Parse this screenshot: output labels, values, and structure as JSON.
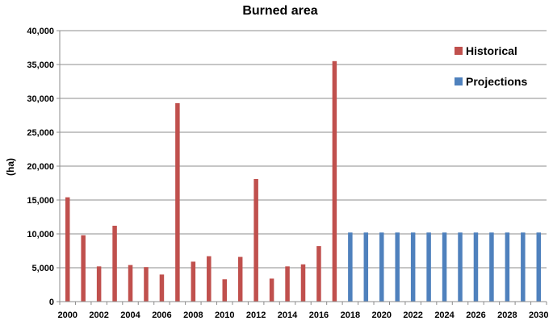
{
  "chart_data": {
    "type": "bar",
    "title": "Burned area",
    "xlabel": "",
    "ylabel": "(ha)",
    "ylim": [
      0,
      40000
    ],
    "yticks": [
      "0",
      "5,000",
      "10,000",
      "15,000",
      "20,000",
      "25,000",
      "30,000",
      "35,000",
      "40,000"
    ],
    "xtick_labels": [
      "2000",
      "2002",
      "2004",
      "2006",
      "2008",
      "2010",
      "2012",
      "2014",
      "2016",
      "2018",
      "2020",
      "2022",
      "2024",
      "2026",
      "2028",
      "2030"
    ],
    "grid": "horizontal",
    "legend_position": "top-right",
    "categories": [
      2000,
      2001,
      2002,
      2003,
      2004,
      2005,
      2006,
      2007,
      2008,
      2009,
      2010,
      2011,
      2012,
      2013,
      2014,
      2015,
      2016,
      2017,
      2018,
      2019,
      2020,
      2021,
      2022,
      2023,
      2024,
      2025,
      2026,
      2027,
      2028,
      2029,
      2030
    ],
    "series": [
      {
        "name": "Historical",
        "color": "#c0504d",
        "x": [
          2000,
          2001,
          2002,
          2003,
          2004,
          2005,
          2006,
          2007,
          2008,
          2009,
          2010,
          2011,
          2012,
          2013,
          2014,
          2015,
          2016,
          2017
        ],
        "values": [
          15400,
          9800,
          5200,
          11200,
          5400,
          5100,
          4000,
          29300,
          5900,
          6700,
          3300,
          6600,
          18100,
          3400,
          5200,
          5500,
          8200,
          35500
        ]
      },
      {
        "name": "Projections",
        "color": "#4f81bd",
        "x": [
          2018,
          2019,
          2020,
          2021,
          2022,
          2023,
          2024,
          2025,
          2026,
          2027,
          2028,
          2029,
          2030
        ],
        "values": [
          10200,
          10200,
          10200,
          10200,
          10200,
          10200,
          10200,
          10200,
          10200,
          10200,
          10200,
          10200,
          10200
        ]
      }
    ]
  }
}
